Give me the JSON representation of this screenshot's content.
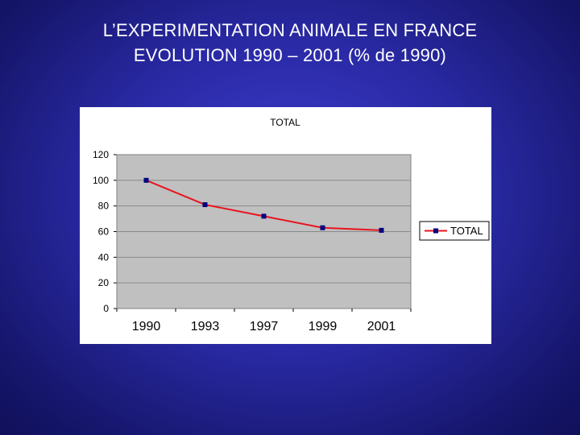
{
  "slide": {
    "title_line1": "L’EXPERIMENTATION ANIMALE EN FRANCE",
    "title_line2": "EVOLUTION 1990 – 2001 (% de 1990)"
  },
  "colors": {
    "background": "#2a2aa6",
    "plot_area": "#c0c0c0",
    "line": "#e8141e",
    "marker": "#000080"
  },
  "chart_data": {
    "type": "line",
    "title": "TOTAL",
    "categories": [
      "1990",
      "1993",
      "1997",
      "1999",
      "2001"
    ],
    "series": [
      {
        "name": "TOTAL",
        "values": [
          100,
          81,
          72,
          63,
          61
        ]
      }
    ],
    "yticks": [
      0,
      20,
      40,
      60,
      80,
      100,
      120
    ],
    "ylim": [
      0,
      120
    ],
    "xlabel": "",
    "ylabel": "",
    "grid": true,
    "legend": "right"
  }
}
